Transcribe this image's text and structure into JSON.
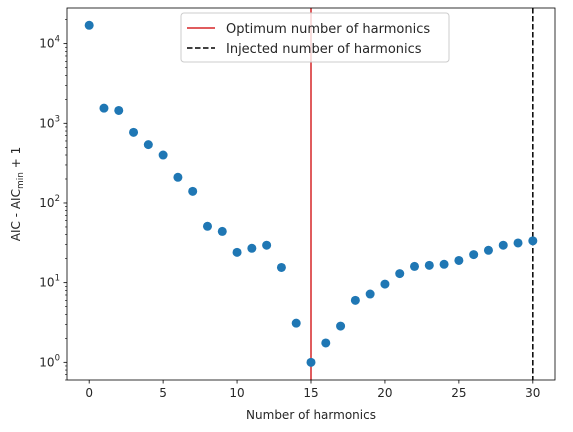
{
  "chart_data": {
    "type": "scatter",
    "title": "",
    "xlabel": "Number of harmonics",
    "ylabel": {
      "prefix": "AIC - AIC",
      "subscript": "min",
      "suffix": " + 1"
    },
    "y_scale": "log",
    "xlim": [
      -1.5,
      31.5
    ],
    "ylim": [
      0.6,
      28000
    ],
    "x_ticks": [
      0,
      5,
      10,
      15,
      20,
      25,
      30
    ],
    "y_ticks": [
      {
        "value": 1,
        "base": "10",
        "exp": "0"
      },
      {
        "value": 10,
        "base": "10",
        "exp": "1"
      },
      {
        "value": 100,
        "base": "10",
        "exp": "2"
      },
      {
        "value": 1000,
        "base": "10",
        "exp": "3"
      },
      {
        "value": 10000,
        "base": "10",
        "exp": "4"
      }
    ],
    "grid": false,
    "legend_placement": "top-center",
    "series": [
      {
        "marker_color": "#1f77b4",
        "x": [
          0,
          1,
          2,
          3,
          4,
          5,
          6,
          7,
          8,
          9,
          10,
          11,
          12,
          13,
          14,
          15,
          16,
          17,
          18,
          19,
          20,
          21,
          22,
          23,
          24,
          25,
          26,
          27,
          28,
          29,
          30
        ],
        "y": [
          17000,
          1550,
          1450,
          770,
          540,
          400,
          210,
          140,
          51,
          44,
          24,
          27,
          29.5,
          15.5,
          3.1,
          1.0,
          1.75,
          2.85,
          6.0,
          7.2,
          9.6,
          13,
          16,
          16.5,
          17,
          19,
          22.5,
          25.5,
          29.5,
          31.5,
          33.5
        ]
      }
    ],
    "vlines": [
      {
        "name": "Optimum number of harmonics",
        "x": 15,
        "color": "#d62728",
        "style": "solid"
      },
      {
        "name": "Injected number of harmonics",
        "x": 30,
        "color": "#000000",
        "style": "dashed"
      }
    ]
  }
}
